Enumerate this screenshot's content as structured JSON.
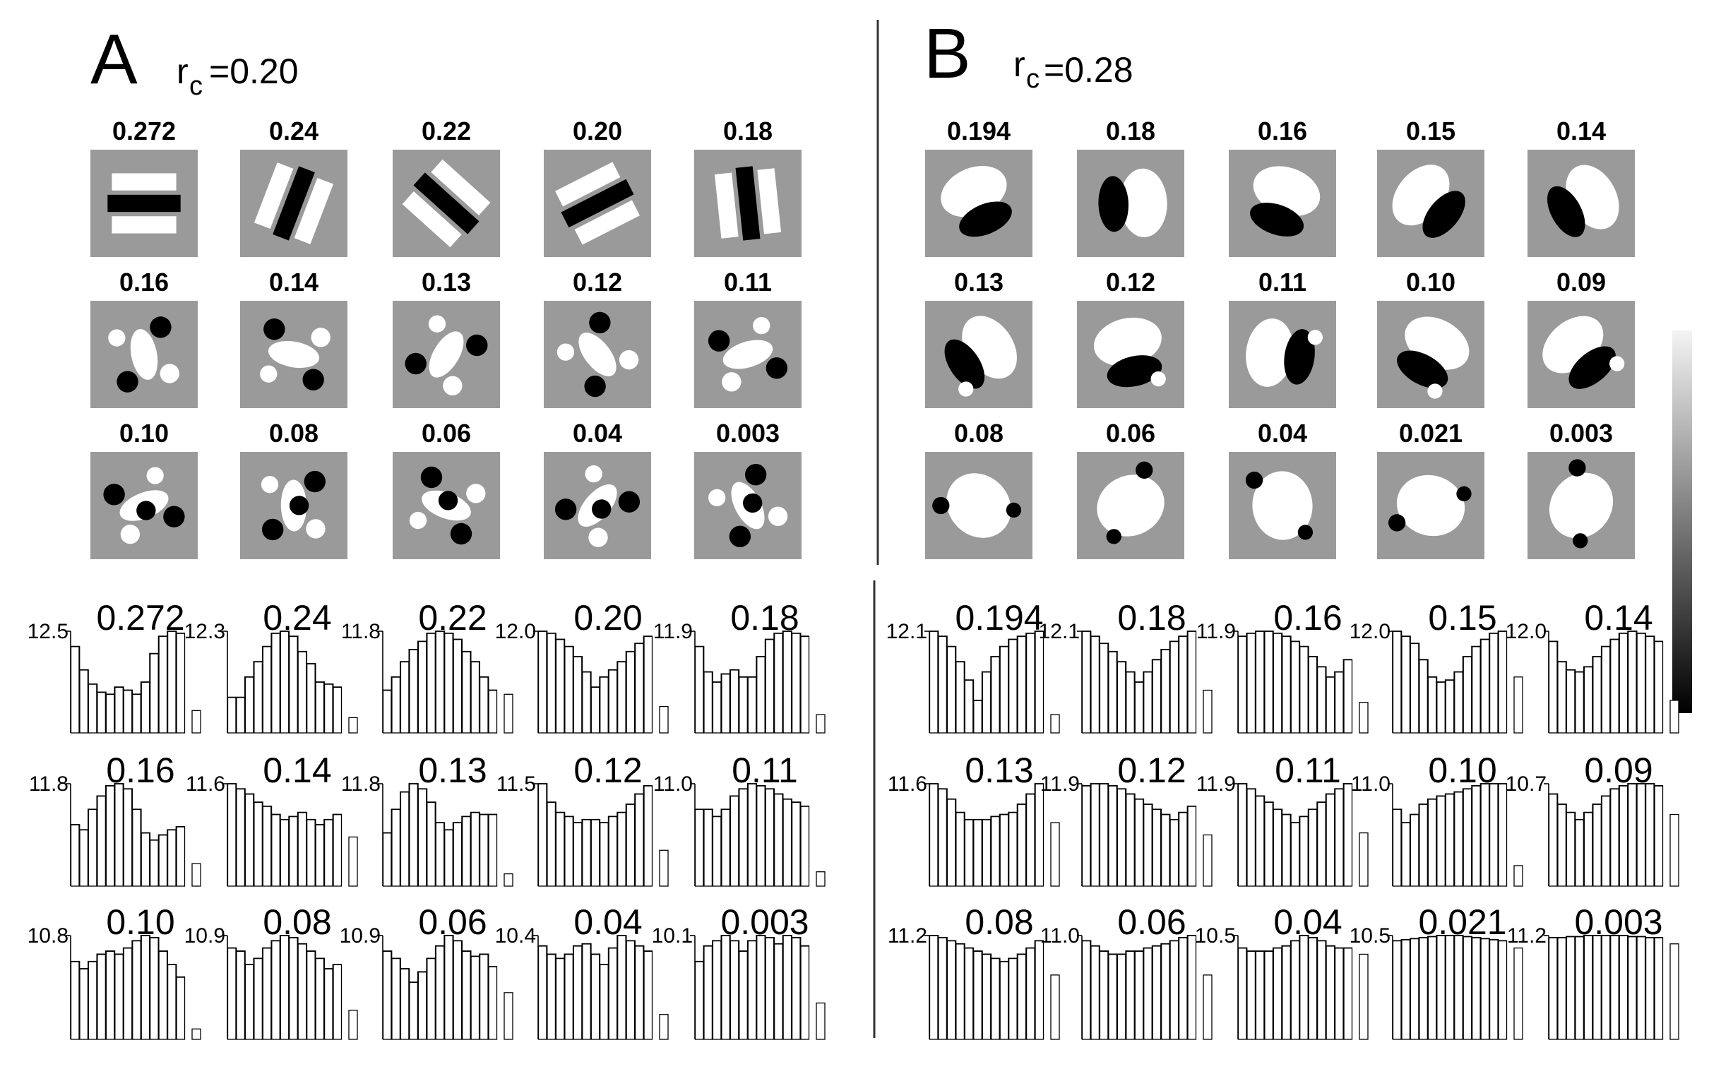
{
  "panels": [
    {
      "letter": "A",
      "rc_symbol": "r",
      "rc_subscript": "c",
      "rc_value": "=0.20",
      "rows": [
        [
          {
            "label": "0.272",
            "max": "12.5",
            "bars": [
              0.85,
              0.62,
              0.48,
              0.4,
              0.38,
              0.45,
              0.42,
              0.38,
              0.5,
              0.78,
              0.95,
              1.0,
              0.98
            ],
            "side": 0.22
          },
          {
            "label": "0.24",
            "max": "12.3",
            "bars": [
              0.35,
              0.35,
              0.55,
              0.7,
              0.85,
              0.98,
              1.0,
              0.95,
              0.8,
              0.68,
              0.5,
              0.48,
              0.45
            ],
            "side": 0.15
          },
          {
            "label": "0.22",
            "max": "11.8",
            "bars": [
              0.42,
              0.55,
              0.7,
              0.82,
              0.9,
              0.98,
              1.0,
              0.98,
              0.92,
              0.8,
              0.7,
              0.55,
              0.42
            ],
            "side": 0.38
          },
          {
            "label": "0.20",
            "max": "12.0",
            "bars": [
              1.0,
              0.98,
              0.92,
              0.85,
              0.75,
              0.6,
              0.45,
              0.55,
              0.62,
              0.7,
              0.8,
              0.88,
              0.95
            ],
            "side": 0.26
          },
          {
            "label": "0.18",
            "max": "11.9",
            "bars": [
              0.85,
              0.6,
              0.5,
              0.58,
              0.62,
              0.55,
              0.55,
              0.75,
              0.92,
              0.98,
              1.0,
              0.98,
              0.95
            ],
            "side": 0.18
          }
        ],
        [
          {
            "label": "0.16",
            "max": "11.8",
            "bars": [
              0.6,
              0.55,
              0.75,
              0.88,
              0.98,
              1.0,
              0.95,
              0.75,
              0.52,
              0.45,
              0.5,
              0.55,
              0.58
            ],
            "side": 0.22
          },
          {
            "label": "0.14",
            "max": "11.6",
            "bars": [
              1.0,
              0.95,
              0.9,
              0.82,
              0.78,
              0.7,
              0.65,
              0.68,
              0.72,
              0.65,
              0.6,
              0.65,
              0.7
            ],
            "side": 0.48
          },
          {
            "label": "0.13",
            "max": "11.8",
            "bars": [
              0.52,
              0.75,
              0.92,
              1.0,
              0.95,
              0.82,
              0.62,
              0.55,
              0.62,
              0.68,
              0.72,
              0.7,
              0.7
            ],
            "side": 0.12
          },
          {
            "label": "0.12",
            "max": "11.5",
            "bars": [
              1.0,
              0.82,
              0.72,
              0.68,
              0.62,
              0.65,
              0.65,
              0.62,
              0.68,
              0.72,
              0.8,
              0.9,
              0.98
            ],
            "side": 0.35
          },
          {
            "label": "0.11",
            "max": "11.0",
            "bars": [
              0.75,
              0.75,
              0.68,
              0.75,
              0.88,
              0.95,
              1.0,
              0.98,
              0.95,
              0.9,
              0.85,
              0.82,
              0.78
            ],
            "side": 0.14
          }
        ],
        [
          {
            "label": "0.10",
            "max": "10.8",
            "bars": [
              0.75,
              0.68,
              0.75,
              0.82,
              0.85,
              0.82,
              0.88,
              0.95,
              1.0,
              0.98,
              0.85,
              0.72,
              0.6
            ],
            "side": 0.1
          },
          {
            "label": "0.08",
            "max": "10.9",
            "bars": [
              0.88,
              0.85,
              0.72,
              0.78,
              0.88,
              0.95,
              1.0,
              0.98,
              0.92,
              0.85,
              0.78,
              0.68,
              0.72
            ],
            "side": 0.28
          },
          {
            "label": "0.06",
            "max": "10.9",
            "bars": [
              0.85,
              0.78,
              0.68,
              0.55,
              0.65,
              0.78,
              0.9,
              1.0,
              0.95,
              0.85,
              0.8,
              0.82,
              0.7
            ],
            "side": 0.45
          },
          {
            "label": "0.04",
            "max": "10.4",
            "bars": [
              0.9,
              0.82,
              0.78,
              0.82,
              0.9,
              0.92,
              0.82,
              0.72,
              0.88,
              1.0,
              0.95,
              0.9,
              0.85
            ],
            "side": 0.24
          },
          {
            "label": "0.003",
            "max": "10.1",
            "bars": [
              0.75,
              0.9,
              0.95,
              1.0,
              0.95,
              0.85,
              0.95,
              1.0,
              0.98,
              0.92,
              1.0,
              0.98,
              0.9
            ],
            "side": 0.35
          }
        ]
      ]
    },
    {
      "letter": "B",
      "rc_symbol": "r",
      "rc_subscript": "c",
      "rc_value": "=0.28",
      "rows": [
        [
          {
            "label": "0.194",
            "max": "12.1",
            "bars": [
              1.0,
              0.95,
              0.85,
              0.7,
              0.52,
              0.32,
              0.6,
              0.75,
              0.85,
              0.92,
              0.95,
              0.98,
              1.0
            ],
            "side": 0.18
          },
          {
            "label": "0.18",
            "max": "12.1",
            "bars": [
              1.0,
              0.95,
              0.88,
              0.8,
              0.7,
              0.6,
              0.5,
              0.6,
              0.72,
              0.82,
              0.9,
              0.95,
              1.0
            ],
            "side": 0.42
          },
          {
            "label": "0.16",
            "max": "11.9",
            "bars": [
              0.95,
              0.98,
              1.0,
              1.0,
              0.98,
              0.95,
              0.9,
              0.85,
              0.75,
              0.65,
              0.55,
              0.6,
              0.72
            ],
            "side": 0.3
          },
          {
            "label": "0.15",
            "max": "12.0",
            "bars": [
              1.0,
              0.95,
              0.88,
              0.72,
              0.55,
              0.5,
              0.52,
              0.6,
              0.75,
              0.85,
              0.92,
              0.98,
              1.0
            ],
            "side": 0.55
          },
          {
            "label": "0.14",
            "max": "12.0",
            "bars": [
              0.9,
              0.7,
              0.62,
              0.6,
              0.65,
              0.75,
              0.85,
              0.92,
              0.98,
              1.0,
              0.98,
              0.95,
              0.9
            ],
            "side": 0.32
          }
        ],
        [
          {
            "label": "0.13",
            "max": "11.6",
            "bars": [
              1.0,
              0.95,
              0.85,
              0.72,
              0.65,
              0.65,
              0.65,
              0.68,
              0.7,
              0.72,
              0.8,
              0.9,
              1.0
            ],
            "side": 0.62
          },
          {
            "label": "0.12",
            "max": "11.9",
            "bars": [
              0.98,
              1.0,
              1.0,
              0.98,
              0.95,
              0.9,
              0.85,
              0.8,
              0.75,
              0.7,
              0.65,
              0.72,
              0.78
            ],
            "side": 0.5
          },
          {
            "label": "0.11",
            "max": "11.9",
            "bars": [
              1.0,
              0.95,
              0.88,
              0.82,
              0.75,
              0.7,
              0.62,
              0.68,
              0.75,
              0.82,
              0.9,
              0.95,
              1.0
            ],
            "side": 0.52
          },
          {
            "label": "0.10",
            "max": "11.0",
            "bars": [
              0.75,
              0.62,
              0.7,
              0.8,
              0.85,
              0.88,
              0.9,
              0.92,
              0.95,
              0.98,
              1.0,
              1.0,
              1.0
            ],
            "side": 0.2
          },
          {
            "label": "0.09",
            "max": "10.7",
            "bars": [
              0.9,
              0.8,
              0.72,
              0.65,
              0.72,
              0.8,
              0.88,
              0.95,
              0.98,
              1.0,
              1.0,
              1.0,
              0.98
            ],
            "side": 0.7
          }
        ],
        [
          {
            "label": "0.08",
            "max": "11.2",
            "bars": [
              1.0,
              0.98,
              0.95,
              0.92,
              0.88,
              0.85,
              0.82,
              0.78,
              0.75,
              0.78,
              0.82,
              0.88,
              0.95
            ],
            "side": 0.62
          },
          {
            "label": "0.06",
            "max": "11.0",
            "bars": [
              0.95,
              0.9,
              0.85,
              0.82,
              0.82,
              0.85,
              0.85,
              0.88,
              0.9,
              0.92,
              0.95,
              0.98,
              1.0
            ],
            "side": 0.62
          },
          {
            "label": "0.04",
            "max": "10.5",
            "bars": [
              0.88,
              0.85,
              0.85,
              0.85,
              0.88,
              0.9,
              0.95,
              1.0,
              0.98,
              0.95,
              0.9,
              0.88,
              0.88
            ],
            "side": 0.82
          },
          {
            "label": "0.021",
            "max": "10.5",
            "bars": [
              0.95,
              0.96,
              0.97,
              0.98,
              0.99,
              1.0,
              1.0,
              1.0,
              0.99,
              0.98,
              0.97,
              0.96,
              0.95
            ],
            "side": 0.88
          },
          {
            "label": "0.003",
            "max": "11.2",
            "bars": [
              0.98,
              0.98,
              0.99,
              0.99,
              1.0,
              1.0,
              1.0,
              1.0,
              1.0,
              0.99,
              0.99,
              0.98,
              0.98
            ],
            "side": 0.92
          }
        ]
      ]
    }
  ],
  "colorbar": {
    "top_color": "#f2f2f2",
    "bottom_color": "#000000"
  }
}
